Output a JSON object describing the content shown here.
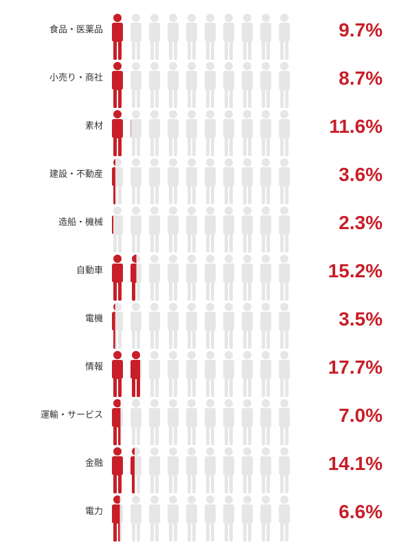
{
  "chart_data": {
    "type": "pictogram",
    "unit_per_icon_percent": 10,
    "icons_per_row": 10,
    "colors": {
      "filled": "#c81e28",
      "empty": "#e6e6e6",
      "value_text": "#c81e28",
      "label_text": "#333333"
    },
    "categories": [
      "食品・医薬品",
      "小売り・商社",
      "素材",
      "建設・不動産",
      "造船・機械",
      "自動車",
      "電機",
      "情報",
      "運輸・サービス",
      "金融",
      "電力"
    ],
    "values": [
      9.7,
      8.7,
      11.6,
      3.6,
      2.3,
      15.2,
      3.5,
      17.7,
      7.0,
      14.1,
      6.6
    ],
    "value_labels": [
      "9.7%",
      "8.7%",
      "11.6%",
      "3.6%",
      "2.3%",
      "15.2%",
      "3.5%",
      "17.7%",
      "7.0%",
      "14.1%",
      "6.6%"
    ]
  }
}
